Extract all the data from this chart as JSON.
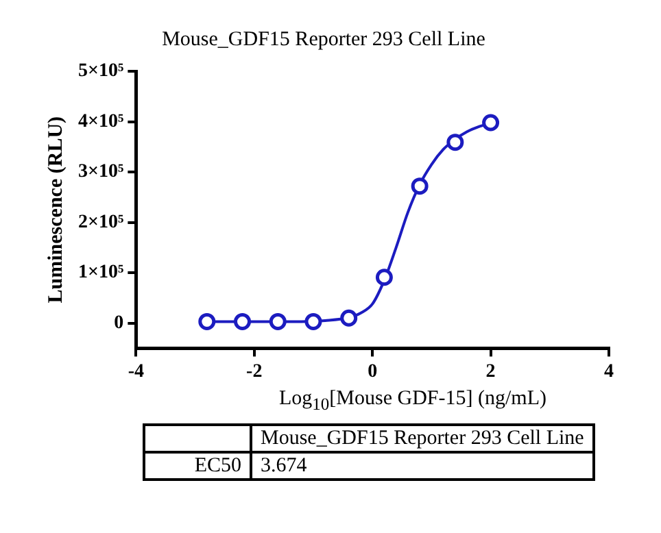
{
  "chart_data": {
    "type": "scatter",
    "title": "Mouse_GDF15 Reporter 293 Cell Line",
    "xlabel": "Log$_{10}$[Mouse GDF-15] (ng/mL)",
    "ylabel": "Luminescence (RLU)",
    "marker": "circle",
    "series": [
      {
        "color": "#1c1cc0",
        "x": [
          -2.8,
          -2.2,
          -1.6,
          -1.0,
          -0.4,
          0.2,
          0.8,
          1.4,
          2.0
        ],
        "values": [
          3000,
          3000,
          3000,
          3000,
          10000,
          91000,
          272000,
          359000,
          398000
        ]
      },
      {
        "type": "line",
        "color": "#1c1cc0",
        "marker": "none",
        "x": [
          -2.8,
          -2.0,
          -1.2,
          -0.8,
          -0.4,
          -0.2,
          0,
          0.2,
          0.4,
          0.6,
          0.8,
          1.0,
          1.2,
          1.4,
          1.6,
          1.8,
          2.0
        ],
        "values": [
          3000,
          3000,
          3000,
          5000,
          11000,
          20000,
          38000,
          85000,
          150000,
          220000,
          275000,
          315000,
          345000,
          365000,
          380000,
          390000,
          397000
        ]
      }
    ],
    "xlim": [
      -4,
      4
    ],
    "xticks": [
      -4,
      -2,
      0,
      2,
      4
    ],
    "ylim": [
      -50000,
      500000
    ],
    "yticks": [
      0,
      {
        "value": 100000,
        "label": "1×10⁵"
      },
      {
        "value": 200000,
        "label": "2×10⁵"
      },
      {
        "value": 300000,
        "label": "3×10⁵"
      },
      {
        "value": 400000,
        "label": "4×10⁵"
      },
      {
        "value": 500000,
        "label": "5×10⁵"
      }
    ],
    "annotations": [
      "Mouse_GDF15 Reporter 293 Cell Line",
      "EC50",
      "3.674"
    ]
  }
}
